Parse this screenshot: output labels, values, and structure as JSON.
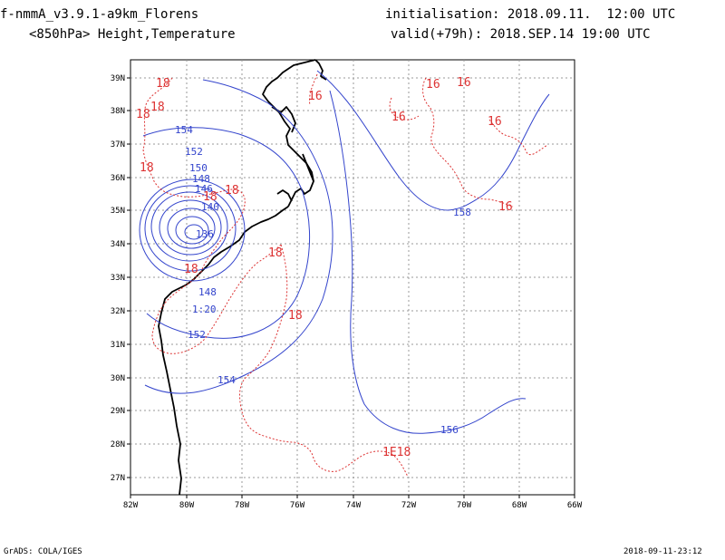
{
  "header": {
    "model": "f-nmmA_v3.9.1-a9km_Florens",
    "field": "<850hPa> Height,Temperature",
    "init": "initialisation: 2018.09.11.  12:00 UTC",
    "valid": "valid(+79h): 2018.SEP.14 19:00 UTC"
  },
  "footer": {
    "left": "GrADS: COLA/IGES",
    "right": "2018-09-11-23:12"
  },
  "map": {
    "lat_labels": [
      "39N",
      "38N",
      "37N",
      "36N",
      "35N",
      "34N",
      "33N",
      "32N",
      "31N",
      "30N",
      "29N",
      "28N",
      "27N"
    ],
    "lon_labels": [
      "82W",
      "80W",
      "78W",
      "76W",
      "74W",
      "72W",
      "70W",
      "68W",
      "66W"
    ],
    "height_labels": [
      "154",
      "152",
      "150",
      "148",
      "146",
      "140",
      "136",
      "148",
      "1:20",
      "152",
      "154",
      "158",
      "156"
    ],
    "temp_labels": [
      "18",
      "18",
      "18",
      "18",
      "16",
      "16",
      "16",
      "16",
      "16",
      "18",
      "18",
      "18",
      "18",
      "18",
      "1E18",
      "16"
    ],
    "colors": {
      "height": "#3344cc",
      "temp": "#dd3333",
      "coast": "#000000",
      "grid": "#999999"
    }
  }
}
